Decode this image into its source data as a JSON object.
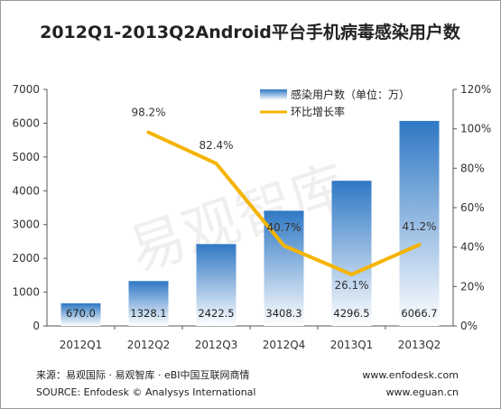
{
  "chart_data": {
    "type": "bar",
    "title": "2012Q1-2013Q2Android平台手机病毒感染用户数",
    "categories": [
      "2012Q1",
      "2012Q2",
      "2012Q3",
      "2012Q4",
      "2013Q1",
      "2013Q2"
    ],
    "series": [
      {
        "name": "感染用户数（单位：万）",
        "type": "bar",
        "axis": "left",
        "values": [
          670.0,
          1328.1,
          2422.5,
          3408.3,
          4296.5,
          6066.7
        ],
        "labels": [
          "670.0",
          "1328.1",
          "2422.5",
          "3408.3",
          "4296.5",
          "6066.7"
        ],
        "color": "#3a86d0"
      },
      {
        "name": "环比增长率",
        "type": "line",
        "axis": "right",
        "values": [
          null,
          98.2,
          82.4,
          40.7,
          26.1,
          41.2
        ],
        "labels": [
          "",
          "98.2%",
          "82.4%",
          "40.7%",
          "26.1%",
          "41.2%"
        ],
        "color": "#f5b400"
      }
    ],
    "y_left": {
      "min": 0,
      "max": 7000,
      "ticks": [
        "0",
        "1000",
        "2000",
        "3000",
        "4000",
        "5000",
        "6000",
        "7000"
      ]
    },
    "y_right": {
      "min": 0,
      "max": 120,
      "ticks": [
        "0%",
        "20%",
        "40%",
        "60%",
        "80%",
        "100%",
        "120%"
      ]
    },
    "grid": false,
    "legend_position": "top-right"
  },
  "watermark": "易观智库",
  "footer": {
    "source_cn": "来源：易观国际 · 易观智库 · eBI中国互联网商情",
    "source_en": "SOURCE: Enfodesk © Analysys International",
    "url1": "www.enfodesk.com",
    "url2": "www.eguan.cn"
  }
}
